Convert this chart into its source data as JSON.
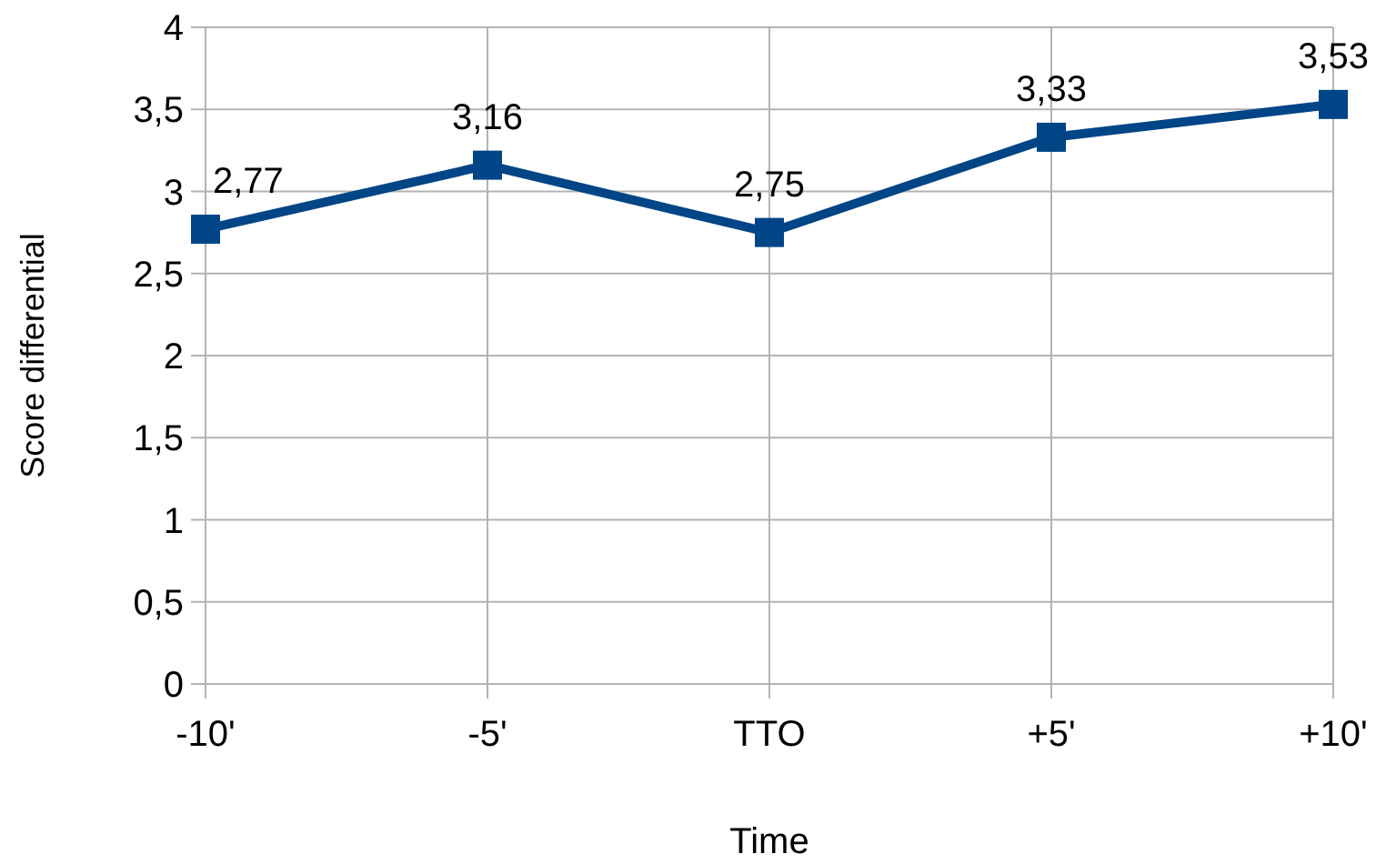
{
  "chart_data": {
    "type": "line",
    "xlabel": "Time",
    "ylabel": "Score differential",
    "categories": [
      "-10'",
      "-5'",
      "TTO",
      "+5'",
      "+10'"
    ],
    "series": [
      {
        "color": "#004586",
        "values": [
          2.77,
          3.16,
          2.75,
          3.33,
          3.53
        ],
        "value_labels": [
          "2,77",
          "3,16",
          "2,75",
          "3,33",
          "3,53"
        ]
      }
    ],
    "ylim": [
      0,
      4
    ],
    "yticks": [
      0,
      {
        "value": 0.5,
        "label": "0,5"
      },
      1,
      {
        "value": 1.5,
        "label": "1,5"
      },
      2,
      {
        "value": 2.5,
        "label": "2,5"
      },
      3,
      {
        "value": 3.5,
        "label": "3,5"
      },
      4
    ],
    "grid": true,
    "marker": "square",
    "line_style": "solid"
  }
}
